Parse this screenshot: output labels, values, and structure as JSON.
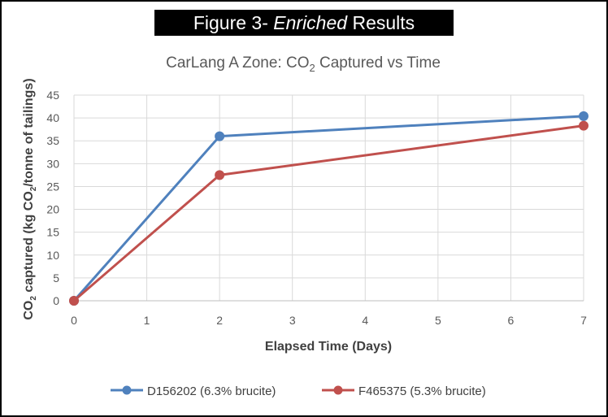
{
  "banner": {
    "prefix": "Figure 3- ",
    "emphasis": "Enriched",
    "suffix": " Results"
  },
  "chart_data": {
    "type": "line",
    "title_main": "CarLang A Zone: CO",
    "title_sub": "2",
    "title_rest": " Captured vs Time",
    "xlabel": "Elapsed Time (Days)",
    "ylabel_parts": [
      "CO",
      "2",
      " captured (kg CO",
      "2",
      "/tonne of tailings)"
    ],
    "xlim": [
      0,
      7
    ],
    "ylim": [
      0,
      45
    ],
    "xticks": [
      0,
      1,
      2,
      3,
      4,
      5,
      6,
      7
    ],
    "yticks": [
      0,
      5,
      10,
      15,
      20,
      25,
      30,
      35,
      40,
      45
    ],
    "grid": true,
    "legend_position": "bottom",
    "series": [
      {
        "name": "D156202 (6.3% brucite)",
        "color": "#4f81bd",
        "x": [
          0,
          2,
          7
        ],
        "y": [
          0,
          36,
          40.4
        ]
      },
      {
        "name": "F465375 (5.3% brucite)",
        "color": "#c0504d",
        "x": [
          0,
          2,
          7
        ],
        "y": [
          0,
          27.5,
          38.3
        ]
      }
    ]
  }
}
